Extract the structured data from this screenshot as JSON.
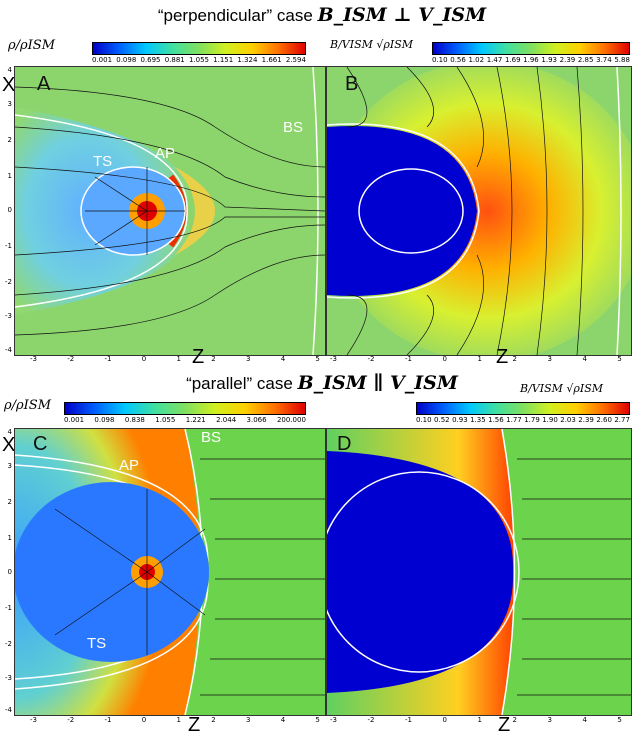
{
  "top_heading": {
    "text": "“perpendicular” case",
    "math": "B_ISM ⊥ V_ISM"
  },
  "bottom_heading": {
    "text": "“parallel” case",
    "math": "B_ISM ∥ V_ISM"
  },
  "colorbars": {
    "top_left": {
      "label": "ρ/ρISM",
      "ticks": [
        "0.001",
        "0.098",
        "0.695",
        "0.881",
        "1.055",
        "1.151",
        "1.324",
        "1.661",
        "2.594"
      ]
    },
    "top_right": {
      "label": "B/VISM √ρISM",
      "ticks": [
        "0.10",
        "0.56",
        "1.02",
        "1.47",
        "1.69",
        "1.96",
        "1.93",
        "2.39",
        "2.85",
        "3.74",
        "5.88"
      ]
    },
    "bottom_left": {
      "label": "ρ/ρISM",
      "ticks": [
        "0.001",
        "0.098",
        "0.838",
        "1.055",
        "1.221",
        "2.044",
        "3.066",
        "200.000"
      ]
    },
    "bottom_right": {
      "label": "B/VISM √ρISM",
      "ticks": [
        "0.10",
        "0.52",
        "0.93",
        "1.35",
        "1.56",
        "1.77",
        "1.79",
        "1.90",
        "2.03",
        "2.39",
        "2.60",
        "2.77"
      ]
    }
  },
  "panels": {
    "A": {
      "label": "A",
      "regions": [
        "TS",
        "AP",
        "BS"
      ]
    },
    "B": {
      "label": "B",
      "regions": []
    },
    "C": {
      "label": "C",
      "regions": [
        "AP",
        "BS",
        "TS"
      ]
    },
    "D": {
      "label": "D",
      "regions": []
    }
  },
  "axes": {
    "x_title": "X",
    "z_title": "Z",
    "z_ticks_left": [
      "-3",
      "-2",
      "-1",
      "0",
      "1",
      "2",
      "3",
      "4",
      "5"
    ],
    "z_ticks_right": [
      "-3",
      "-2",
      "-1",
      "0",
      "1",
      "2",
      "3",
      "4",
      "5"
    ],
    "x_ticks": [
      "4",
      "3",
      "2",
      "1",
      "0",
      "-1",
      "-2",
      "-3",
      "-4"
    ]
  }
}
